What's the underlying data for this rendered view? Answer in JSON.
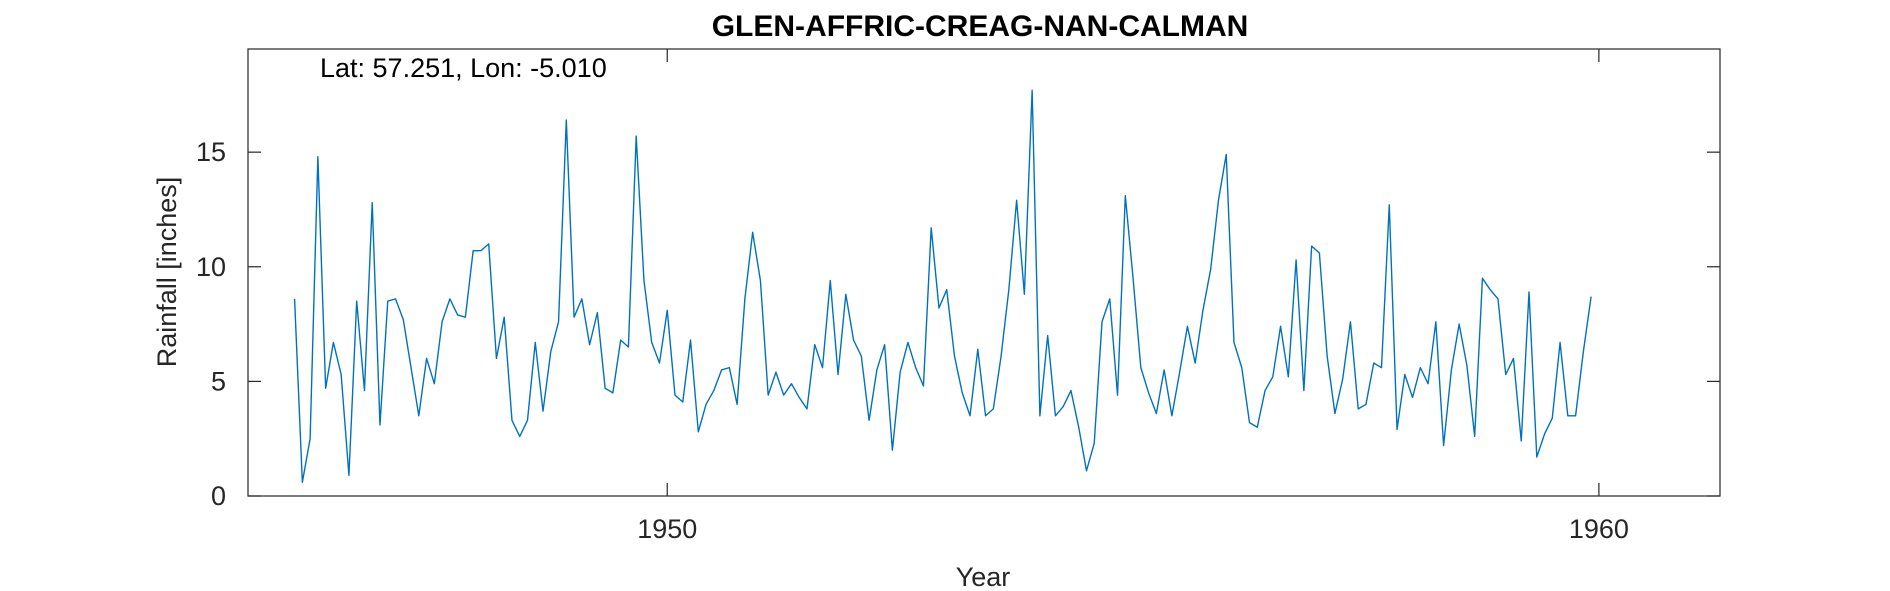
{
  "chart_data": {
    "type": "line",
    "title": "GLEN-AFFRIC-CREAG-NAN-CALMAN",
    "annotation": "Lat: 57.251, Lon: -5.010",
    "xlabel": "Year",
    "ylabel": "Rainfall [inches]",
    "xlim": [
      1945.5,
      1961.3
    ],
    "ylim": [
      0,
      19.5
    ],
    "xticks": [
      1950,
      1960
    ],
    "yticks": [
      0,
      5,
      10,
      15
    ],
    "grid": false,
    "series": [
      {
        "color": "#0072BD",
        "start_year": 1946.0,
        "step_months": 1,
        "values": [
          8.6,
          0.6,
          2.5,
          14.8,
          4.7,
          6.7,
          5.3,
          0.9,
          8.5,
          4.6,
          12.8,
          3.1,
          8.5,
          8.6,
          7.7,
          5.6,
          3.5,
          6.0,
          4.9,
          7.6,
          8.6,
          7.9,
          7.8,
          10.7,
          10.7,
          11.0,
          6.0,
          7.8,
          3.3,
          2.6,
          3.3,
          6.7,
          3.7,
          6.3,
          7.6,
          16.4,
          7.8,
          8.6,
          6.6,
          8.0,
          4.7,
          4.5,
          6.8,
          6.5,
          15.7,
          9.4,
          6.7,
          5.8,
          8.1,
          4.4,
          4.1,
          6.8,
          2.8,
          4.0,
          4.6,
          5.5,
          5.6,
          4.0,
          8.6,
          11.5,
          9.4,
          4.4,
          5.4,
          4.4,
          4.9,
          4.3,
          3.8,
          6.6,
          5.6,
          9.4,
          5.3,
          8.8,
          6.8,
          6.1,
          3.3,
          5.5,
          6.6,
          2.0,
          5.4,
          6.7,
          5.6,
          4.8,
          11.7,
          8.2,
          9.0,
          6.1,
          4.5,
          3.5,
          6.4,
          3.5,
          3.8,
          6.1,
          9.0,
          12.9,
          8.8,
          17.7,
          3.5,
          7.0,
          3.5,
          3.9,
          4.6,
          3.0,
          1.1,
          2.3,
          7.6,
          8.6,
          4.4,
          13.1,
          9.5,
          5.6,
          4.5,
          3.6,
          5.5,
          3.5,
          5.4,
          7.4,
          5.8,
          8.1,
          9.9,
          12.9,
          14.9,
          6.7,
          5.6,
          3.2,
          3.0,
          4.6,
          5.2,
          7.4,
          5.2,
          10.3,
          4.6,
          10.9,
          10.6,
          6.1,
          3.6,
          5.1,
          7.6,
          3.8,
          4.0,
          5.8,
          5.6,
          12.7,
          2.9,
          5.3,
          4.3,
          5.6,
          4.9,
          7.6,
          2.2,
          5.5,
          7.5,
          5.7,
          2.6,
          9.5,
          9.0,
          8.6,
          5.3,
          6.0,
          2.4,
          8.9,
          1.7,
          2.7,
          3.4,
          6.7,
          3.5,
          3.5,
          6.3,
          8.7
        ]
      }
    ]
  }
}
